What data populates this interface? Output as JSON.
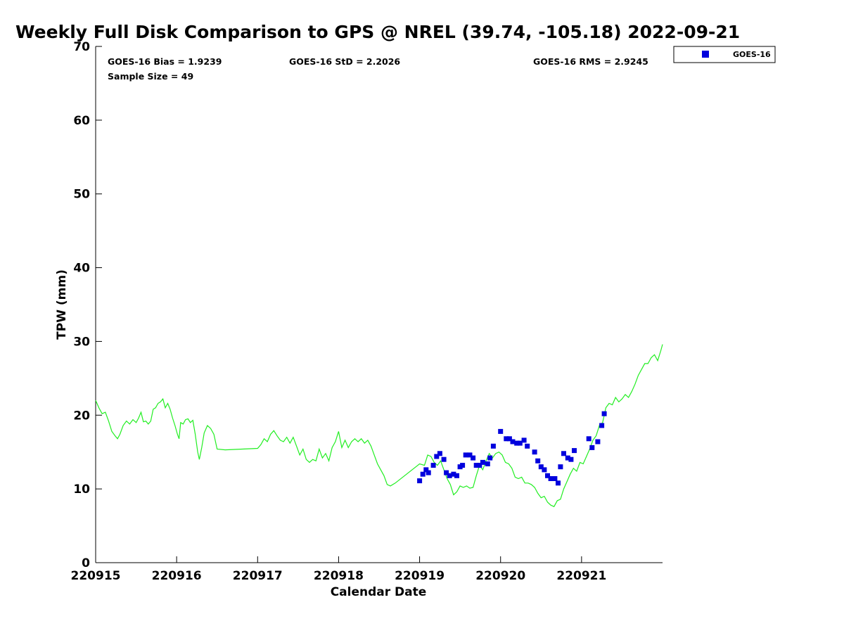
{
  "chart_data": {
    "type": "line+scatter",
    "title": "Weekly Full Disk Comparison to GPS @ NREL (39.74, -105.18) 2022-09-21",
    "xlabel": "Calendar Date",
    "ylabel": "TPW (mm)",
    "xlim": [
      0,
      7
    ],
    "ylim": [
      0,
      70
    ],
    "x_ticks": [
      {
        "value": 0,
        "label": "220915"
      },
      {
        "value": 1,
        "label": "220916"
      },
      {
        "value": 2,
        "label": "220917"
      },
      {
        "value": 3,
        "label": "220918"
      },
      {
        "value": 4,
        "label": "220919"
      },
      {
        "value": 5,
        "label": "220920"
      },
      {
        "value": 6,
        "label": "220921"
      }
    ],
    "y_ticks": [
      0,
      10,
      20,
      30,
      40,
      50,
      60,
      70
    ],
    "stats": {
      "bias": "GOES-16 Bias = 1.9239",
      "std": "GOES-16 StD = 2.2026",
      "rms": "GOES-16 RMS = 2.9245",
      "sample": "Sample Size = 49"
    },
    "legend": {
      "position": "top-right",
      "label": "GOES-16",
      "color": "#0000dd"
    },
    "gps_series": {
      "name": "GPS",
      "color": "#22ee22",
      "points": [
        [
          0.0,
          22.0
        ],
        [
          0.04,
          21.0
        ],
        [
          0.08,
          20.2
        ],
        [
          0.12,
          20.4
        ],
        [
          0.16,
          19.2
        ],
        [
          0.2,
          17.8
        ],
        [
          0.24,
          17.2
        ],
        [
          0.27,
          16.8
        ],
        [
          0.3,
          17.4
        ],
        [
          0.34,
          18.6
        ],
        [
          0.38,
          19.2
        ],
        [
          0.42,
          18.8
        ],
        [
          0.46,
          19.4
        ],
        [
          0.5,
          19.0
        ],
        [
          0.53,
          19.6
        ],
        [
          0.56,
          20.4
        ],
        [
          0.59,
          19.1
        ],
        [
          0.62,
          19.2
        ],
        [
          0.65,
          18.8
        ],
        [
          0.68,
          19.2
        ],
        [
          0.71,
          20.8
        ],
        [
          0.74,
          21.0
        ],
        [
          0.77,
          21.6
        ],
        [
          0.8,
          21.8
        ],
        [
          0.83,
          22.2
        ],
        [
          0.86,
          21.0
        ],
        [
          0.89,
          21.6
        ],
        [
          0.92,
          20.8
        ],
        [
          0.95,
          19.6
        ],
        [
          0.98,
          18.6
        ],
        [
          1.01,
          17.4
        ],
        [
          1.03,
          16.8
        ],
        [
          1.05,
          19.0
        ],
        [
          1.08,
          18.8
        ],
        [
          1.11,
          19.4
        ],
        [
          1.14,
          19.5
        ],
        [
          1.17,
          19.0
        ],
        [
          1.2,
          19.3
        ],
        [
          1.23,
          17.4
        ],
        [
          1.26,
          15.0
        ],
        [
          1.28,
          14.0
        ],
        [
          1.31,
          15.6
        ],
        [
          1.34,
          17.6
        ],
        [
          1.38,
          18.6
        ],
        [
          1.42,
          18.2
        ],
        [
          1.46,
          17.4
        ],
        [
          1.5,
          15.4
        ],
        [
          1.6,
          15.3
        ],
        [
          2.0,
          15.5
        ],
        [
          2.04,
          16.0
        ],
        [
          2.08,
          16.8
        ],
        [
          2.12,
          16.4
        ],
        [
          2.16,
          17.4
        ],
        [
          2.2,
          17.9
        ],
        [
          2.24,
          17.2
        ],
        [
          2.28,
          16.6
        ],
        [
          2.32,
          16.4
        ],
        [
          2.36,
          17.0
        ],
        [
          2.4,
          16.2
        ],
        [
          2.44,
          17.0
        ],
        [
          2.48,
          15.8
        ],
        [
          2.52,
          14.6
        ],
        [
          2.56,
          15.4
        ],
        [
          2.6,
          14.0
        ],
        [
          2.64,
          13.6
        ],
        [
          2.68,
          14.0
        ],
        [
          2.72,
          13.8
        ],
        [
          2.76,
          15.4
        ],
        [
          2.8,
          14.2
        ],
        [
          2.84,
          14.8
        ],
        [
          2.88,
          13.8
        ],
        [
          2.92,
          15.6
        ],
        [
          2.96,
          16.4
        ],
        [
          3.0,
          17.8
        ],
        [
          3.04,
          15.6
        ],
        [
          3.08,
          16.6
        ],
        [
          3.12,
          15.6
        ],
        [
          3.16,
          16.4
        ],
        [
          3.2,
          16.8
        ],
        [
          3.24,
          16.4
        ],
        [
          3.28,
          16.8
        ],
        [
          3.32,
          16.2
        ],
        [
          3.36,
          16.6
        ],
        [
          3.4,
          15.8
        ],
        [
          3.44,
          14.6
        ],
        [
          3.48,
          13.4
        ],
        [
          3.52,
          12.6
        ],
        [
          3.56,
          11.8
        ],
        [
          3.6,
          10.6
        ],
        [
          3.64,
          10.4
        ],
        [
          3.7,
          10.8
        ],
        [
          4.0,
          13.4
        ],
        [
          4.06,
          13.2
        ],
        [
          4.1,
          14.6
        ],
        [
          4.14,
          14.4
        ],
        [
          4.18,
          13.6
        ],
        [
          4.22,
          13.2
        ],
        [
          4.26,
          13.8
        ],
        [
          4.3,
          12.6
        ],
        [
          4.34,
          11.4
        ],
        [
          4.38,
          10.6
        ],
        [
          4.42,
          9.2
        ],
        [
          4.46,
          9.6
        ],
        [
          4.5,
          10.4
        ],
        [
          4.54,
          10.2
        ],
        [
          4.58,
          10.4
        ],
        [
          4.62,
          10.1
        ],
        [
          4.66,
          10.2
        ],
        [
          4.7,
          11.8
        ],
        [
          4.74,
          13.2
        ],
        [
          4.78,
          12.6
        ],
        [
          4.82,
          13.8
        ],
        [
          4.86,
          14.8
        ],
        [
          4.9,
          14.2
        ],
        [
          4.94,
          14.8
        ],
        [
          4.98,
          15.0
        ],
        [
          5.02,
          14.6
        ],
        [
          5.06,
          13.6
        ],
        [
          5.1,
          13.4
        ],
        [
          5.14,
          12.8
        ],
        [
          5.18,
          11.6
        ],
        [
          5.22,
          11.4
        ],
        [
          5.26,
          11.6
        ],
        [
          5.3,
          10.8
        ],
        [
          5.34,
          10.8
        ],
        [
          5.38,
          10.6
        ],
        [
          5.42,
          10.2
        ],
        [
          5.46,
          9.4
        ],
        [
          5.5,
          8.8
        ],
        [
          5.54,
          9.0
        ],
        [
          5.58,
          8.2
        ],
        [
          5.62,
          7.8
        ],
        [
          5.66,
          7.6
        ],
        [
          5.7,
          8.4
        ],
        [
          5.74,
          8.6
        ],
        [
          5.78,
          10.0
        ],
        [
          5.82,
          11.0
        ],
        [
          5.86,
          12.0
        ],
        [
          5.9,
          12.8
        ],
        [
          5.94,
          12.4
        ],
        [
          5.98,
          13.6
        ],
        [
          6.02,
          13.4
        ],
        [
          6.06,
          14.4
        ],
        [
          6.1,
          15.4
        ],
        [
          6.14,
          16.6
        ],
        [
          6.18,
          17.2
        ],
        [
          6.22,
          18.6
        ],
        [
          6.26,
          19.0
        ],
        [
          6.3,
          21.0
        ],
        [
          6.34,
          21.6
        ],
        [
          6.38,
          21.4
        ],
        [
          6.42,
          22.4
        ],
        [
          6.46,
          21.8
        ],
        [
          6.5,
          22.2
        ],
        [
          6.54,
          22.8
        ],
        [
          6.58,
          22.4
        ],
        [
          6.62,
          23.2
        ],
        [
          6.66,
          24.2
        ],
        [
          6.7,
          25.4
        ],
        [
          6.74,
          26.2
        ],
        [
          6.78,
          27.0
        ],
        [
          6.82,
          27.0
        ],
        [
          6.86,
          27.8
        ],
        [
          6.9,
          28.2
        ],
        [
          6.94,
          27.4
        ],
        [
          6.98,
          28.8
        ],
        [
          7.0,
          29.6
        ]
      ]
    },
    "goes_series": {
      "name": "GOES-16",
      "color": "#0000dd",
      "points": [
        [
          4.0,
          11.1
        ],
        [
          4.04,
          12.0
        ],
        [
          4.08,
          12.6
        ],
        [
          4.11,
          12.2
        ],
        [
          4.17,
          13.2
        ],
        [
          4.21,
          14.4
        ],
        [
          4.25,
          14.8
        ],
        [
          4.3,
          14.0
        ],
        [
          4.33,
          12.2
        ],
        [
          4.37,
          11.8
        ],
        [
          4.42,
          12.0
        ],
        [
          4.46,
          11.8
        ],
        [
          4.5,
          13.0
        ],
        [
          4.53,
          13.2
        ],
        [
          4.57,
          14.6
        ],
        [
          4.62,
          14.6
        ],
        [
          4.66,
          14.2
        ],
        [
          4.7,
          13.2
        ],
        [
          4.74,
          13.2
        ],
        [
          4.78,
          13.6
        ],
        [
          4.84,
          13.4
        ],
        [
          4.87,
          14.2
        ],
        [
          4.91,
          15.8
        ],
        [
          5.0,
          17.8
        ],
        [
          5.07,
          16.8
        ],
        [
          5.11,
          16.8
        ],
        [
          5.15,
          16.4
        ],
        [
          5.2,
          16.2
        ],
        [
          5.24,
          16.2
        ],
        [
          5.29,
          16.6
        ],
        [
          5.33,
          15.8
        ],
        [
          5.42,
          15.0
        ],
        [
          5.46,
          13.8
        ],
        [
          5.5,
          13.0
        ],
        [
          5.54,
          12.6
        ],
        [
          5.58,
          11.8
        ],
        [
          5.62,
          11.4
        ],
        [
          5.67,
          11.4
        ],
        [
          5.71,
          10.8
        ],
        [
          5.74,
          13.0
        ],
        [
          5.78,
          14.8
        ],
        [
          5.83,
          14.2
        ],
        [
          5.87,
          14.0
        ],
        [
          5.91,
          15.2
        ],
        [
          6.09,
          16.8
        ],
        [
          6.13,
          15.6
        ],
        [
          6.2,
          16.4
        ],
        [
          6.25,
          18.6
        ],
        [
          6.28,
          20.2
        ]
      ]
    }
  }
}
